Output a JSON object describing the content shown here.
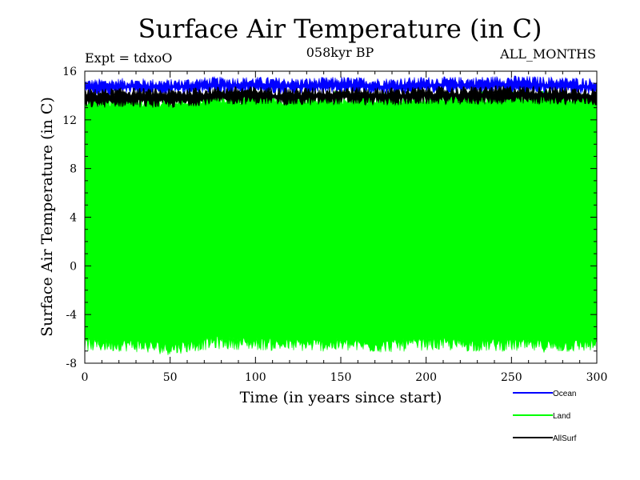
{
  "chart_data": {
    "type": "line",
    "title": "Surface Air Temperature (in C)",
    "subtitle_left": "Expt = tdxoO",
    "subtitle_center": "058kyr BP",
    "subtitle_right": "ALL_MONTHS",
    "xlabel": "Time (in years since start)",
    "ylabel": "Surface Air Temperature (in C)",
    "xlim": [
      0,
      300
    ],
    "ylim": [
      -8,
      16
    ],
    "x_ticks": [
      "0",
      "50",
      "100",
      "150",
      "200",
      "250",
      "300"
    ],
    "y_ticks": [
      "-8",
      "-4",
      "0",
      "4",
      "8",
      "12",
      "16"
    ],
    "grid": false,
    "legend_position": "bottom-right, outside plot",
    "series": [
      {
        "name": "Ocean",
        "color": "#0000ff",
        "x": [
          0,
          25,
          50,
          75,
          100,
          125,
          150,
          175,
          200,
          225,
          250,
          275,
          300
        ],
        "y_min": [
          14.3,
          14.4,
          14.3,
          14.5,
          14.5,
          14.4,
          14.5,
          14.4,
          14.5,
          14.5,
          14.5,
          14.5,
          14.4
        ],
        "y_max": [
          15.0,
          15.1,
          15.0,
          15.2,
          15.2,
          15.1,
          15.2,
          15.1,
          15.2,
          15.2,
          15.3,
          15.2,
          15.1
        ]
      },
      {
        "name": "Land",
        "color": "#00ff00",
        "x": [
          0,
          25,
          50,
          75,
          100,
          125,
          150,
          175,
          200,
          225,
          250,
          275,
          300
        ],
        "y_min": [
          -6.5,
          -6.5,
          -6.8,
          -6.3,
          -6.4,
          -6.5,
          -6.5,
          -6.6,
          -6.4,
          -6.5,
          -6.5,
          -6.6,
          -6.5
        ],
        "y_max": [
          13.5,
          13.6,
          13.5,
          13.8,
          13.8,
          13.7,
          13.8,
          13.7,
          13.8,
          13.8,
          13.9,
          13.8,
          13.7
        ]
      },
      {
        "name": "AllSurf",
        "color": "#000000",
        "x": [
          0,
          25,
          50,
          75,
          100,
          125,
          150,
          175,
          200,
          225,
          250,
          275,
          300
        ],
        "y_min": [
          13.3,
          13.4,
          13.3,
          13.6,
          13.6,
          13.5,
          13.6,
          13.5,
          13.6,
          13.6,
          13.6,
          13.6,
          13.5
        ],
        "y_max": [
          14.2,
          14.3,
          14.2,
          14.4,
          14.4,
          14.3,
          14.4,
          14.3,
          14.4,
          14.4,
          14.5,
          14.4,
          14.3
        ]
      }
    ]
  }
}
